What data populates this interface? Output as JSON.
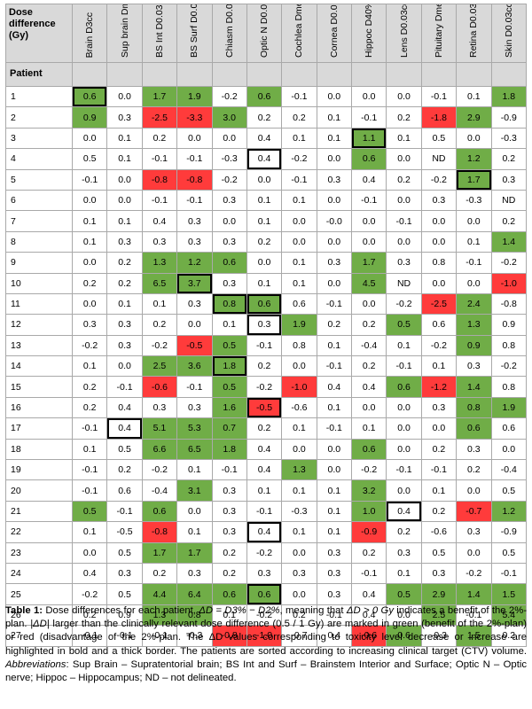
{
  "table": {
    "header_title": "Dose difference (Gy)",
    "patient_label": "Patient",
    "columns": [
      "Brain D3cc",
      "Sup brain Dmean",
      "BS Int D0.03cc",
      "BS Surf D0.03cc",
      "Chiasm D0.03cc",
      "Optic N D0.03cc",
      "Cochlea Dmean",
      "Cornea D0.03cc",
      "Hippoc D40%",
      "Lens D0.03cc",
      "Pituitary Dmean",
      "Retina D0.03cc",
      "Skin D0.03cc"
    ],
    "rows": [
      {
        "patient": "1",
        "values": [
          "0.6",
          "0.0",
          "1.7",
          "1.9",
          "-0.2",
          "0.6",
          "-0.1",
          "0.0",
          "0.0",
          "0.0",
          "-0.1",
          "0.1",
          "1.8"
        ],
        "flags": [
          "gb",
          "",
          "g",
          "g",
          "",
          "g",
          "",
          "",
          "",
          "",
          "",
          "",
          "g"
        ]
      },
      {
        "patient": "2",
        "values": [
          "0.9",
          "0.3",
          "-2.5",
          "-3.3",
          "3.0",
          "0.2",
          "0.2",
          "0.1",
          "-0.1",
          "0.2",
          "-1.8",
          "2.9",
          "-0.9"
        ],
        "flags": [
          "g",
          "",
          "r",
          "r",
          "g",
          "",
          "",
          "",
          "",
          "",
          "r",
          "g",
          ""
        ]
      },
      {
        "patient": "3",
        "values": [
          "0.0",
          "0.1",
          "0.2",
          "0.0",
          "0.0",
          "0.4",
          "0.1",
          "0.1",
          "1.1",
          "0.1",
          "0.5",
          "0.0",
          "-0.3"
        ],
        "flags": [
          "",
          "",
          "",
          "",
          "",
          "",
          "",
          "",
          "gb",
          "",
          "",
          "",
          ""
        ]
      },
      {
        "patient": "4",
        "values": [
          "0.5",
          "0.1",
          "-0.1",
          "-0.1",
          "-0.3",
          "0.4",
          "-0.2",
          "0.0",
          "0.6",
          "0.0",
          "ND",
          "1.2",
          "0.2"
        ],
        "flags": [
          "",
          "",
          "",
          "",
          "",
          "b",
          "",
          "",
          "g",
          "",
          "",
          "g",
          ""
        ]
      },
      {
        "patient": "5",
        "values": [
          "-0.1",
          "0.0",
          "-0.8",
          "-0.8",
          "-0.2",
          "0.0",
          "-0.1",
          "0.3",
          "0.4",
          "0.2",
          "-0.2",
          "1.7",
          "0.3"
        ],
        "flags": [
          "",
          "",
          "r",
          "r",
          "",
          "",
          "",
          "",
          "",
          "",
          "",
          "gb",
          ""
        ]
      },
      {
        "patient": "6",
        "values": [
          "0.0",
          "0.0",
          "-0.1",
          "-0.1",
          "0.3",
          "0.1",
          "0.1",
          "0.0",
          "-0.1",
          "0.0",
          "0.3",
          "-0.3",
          "ND"
        ],
        "flags": [
          "",
          "",
          "",
          "",
          "",
          "",
          "",
          "",
          "",
          "",
          "",
          "",
          ""
        ]
      },
      {
        "patient": "7",
        "values": [
          "0.1",
          "0.1",
          "0.4",
          "0.3",
          "0.0",
          "0.1",
          "0.0",
          "-0.0",
          "0.0",
          "-0.1",
          "0.0",
          "0.0",
          "0.2"
        ],
        "flags": [
          "",
          "",
          "",
          "",
          "",
          "",
          "",
          "",
          "",
          "",
          "",
          "",
          ""
        ]
      },
      {
        "patient": "8",
        "values": [
          "0.1",
          "0.3",
          "0.3",
          "0.3",
          "0.3",
          "0.2",
          "0.0",
          "0.0",
          "0.0",
          "0.0",
          "0.0",
          "0.1",
          "1.4"
        ],
        "flags": [
          "",
          "",
          "",
          "",
          "",
          "",
          "",
          "",
          "",
          "",
          "",
          "",
          "g"
        ]
      },
      {
        "patient": "9",
        "values": [
          "0.0",
          "0.2",
          "1.3",
          "1.2",
          "0.6",
          "0.0",
          "0.1",
          "0.3",
          "1.7",
          "0.3",
          "0.8",
          "-0.1",
          "-0.2"
        ],
        "flags": [
          "",
          "",
          "g",
          "g",
          "g",
          "",
          "",
          "",
          "g",
          "",
          "",
          "",
          ""
        ]
      },
      {
        "patient": "10",
        "values": [
          "0.2",
          "0.2",
          "6.5",
          "3.7",
          "0.3",
          "0.1",
          "0.1",
          "0.0",
          "4.5",
          "ND",
          "0.0",
          "0.0",
          "-1.0"
        ],
        "flags": [
          "",
          "",
          "g",
          "gb",
          "",
          "",
          "",
          "",
          "g",
          "",
          "",
          "",
          "r"
        ]
      },
      {
        "patient": "11",
        "values": [
          "0.0",
          "0.1",
          "0.1",
          "0.3",
          "0.8",
          "0.6",
          "0.6",
          "-0.1",
          "0.0",
          "-0.2",
          "-2.5",
          "2.4",
          "-0.8"
        ],
        "flags": [
          "",
          "",
          "",
          "",
          "gb",
          "gb",
          "",
          "",
          "",
          "",
          "r",
          "g",
          ""
        ]
      },
      {
        "patient": "12",
        "values": [
          "0.3",
          "0.3",
          "0.2",
          "0.0",
          "0.1",
          "0.3",
          "1.9",
          "0.2",
          "0.2",
          "0.5",
          "0.6",
          "1.3",
          "0.9"
        ],
        "flags": [
          "",
          "",
          "",
          "",
          "",
          "b",
          "g",
          "",
          "",
          "g",
          "",
          "g",
          ""
        ]
      },
      {
        "patient": "13",
        "values": [
          "-0.2",
          "0.3",
          "-0.2",
          "-0.5",
          "0.5",
          "-0.1",
          "0.8",
          "0.1",
          "-0.4",
          "0.1",
          "-0.2",
          "0.9",
          "0.8"
        ],
        "flags": [
          "",
          "",
          "",
          "r",
          "g",
          "",
          "",
          "",
          "",
          "",
          "",
          "g",
          ""
        ]
      },
      {
        "patient": "14",
        "values": [
          "0.1",
          "0.0",
          "2.5",
          "3.6",
          "1.8",
          "0.2",
          "0.0",
          "-0.1",
          "0.2",
          "-0.1",
          "0.1",
          "0.3",
          "-0.2"
        ],
        "flags": [
          "",
          "",
          "g",
          "g",
          "gb",
          "",
          "",
          "",
          "",
          "",
          "",
          "",
          ""
        ]
      },
      {
        "patient": "15",
        "values": [
          "0.2",
          "-0.1",
          "-0.6",
          "-0.1",
          "0.5",
          "-0.2",
          "-1.0",
          "0.4",
          "0.4",
          "0.6",
          "-1.2",
          "1.4",
          "0.8"
        ],
        "flags": [
          "",
          "",
          "r",
          "",
          "g",
          "",
          "r",
          "",
          "",
          "g",
          "r",
          "g",
          ""
        ]
      },
      {
        "patient": "16",
        "values": [
          "0.2",
          "0.4",
          "0.3",
          "0.3",
          "1.6",
          "-0.5",
          "-0.6",
          "0.1",
          "0.0",
          "0.0",
          "0.3",
          "0.8",
          "1.9"
        ],
        "flags": [
          "",
          "",
          "",
          "",
          "g",
          "rb",
          "",
          "",
          "",
          "",
          "",
          "g",
          "g"
        ]
      },
      {
        "patient": "17",
        "values": [
          "-0.1",
          "0.4",
          "5.1",
          "5.3",
          "0.7",
          "0.2",
          "0.1",
          "-0.1",
          "0.1",
          "0.0",
          "0.0",
          "0.6",
          "0.6"
        ],
        "flags": [
          "",
          "b",
          "g",
          "g",
          "g",
          "",
          "",
          "",
          "",
          "",
          "",
          "g",
          ""
        ]
      },
      {
        "patient": "18",
        "values": [
          "0.1",
          "0.5",
          "6.6",
          "6.5",
          "1.8",
          "0.4",
          "0.0",
          "0.0",
          "0.6",
          "0.0",
          "0.2",
          "0.3",
          "0.0"
        ],
        "flags": [
          "",
          "",
          "g",
          "g",
          "g",
          "",
          "",
          "",
          "g",
          "",
          "",
          "",
          ""
        ]
      },
      {
        "patient": "19",
        "values": [
          "-0.1",
          "0.2",
          "-0.2",
          "0.1",
          "-0.1",
          "0.4",
          "1.3",
          "0.0",
          "-0.2",
          "-0.1",
          "-0.1",
          "0.2",
          "-0.4"
        ],
        "flags": [
          "",
          "",
          "",
          "",
          "",
          "",
          "g",
          "",
          "",
          "",
          "",
          "",
          ""
        ]
      },
      {
        "patient": "20",
        "values": [
          "-0.1",
          "0.6",
          "-0.4",
          "3.1",
          "0.3",
          "0.1",
          "0.1",
          "0.1",
          "3.2",
          "0.0",
          "0.1",
          "0.0",
          "0.5"
        ],
        "flags": [
          "",
          "",
          "",
          "g",
          "",
          "",
          "",
          "",
          "g",
          "",
          "",
          "",
          ""
        ]
      },
      {
        "patient": "21",
        "values": [
          "0.5",
          "-0.1",
          "0.6",
          "0.0",
          "0.3",
          "-0.1",
          "-0.3",
          "0.1",
          "1.0",
          "0.4",
          "0.2",
          "-0.7",
          "1.2"
        ],
        "flags": [
          "g",
          "",
          "g",
          "",
          "",
          "",
          "",
          "",
          "g",
          "b",
          "",
          "r",
          "g"
        ]
      },
      {
        "patient": "22",
        "values": [
          "0.1",
          "-0.5",
          "-0.8",
          "0.1",
          "0.3",
          "0.4",
          "0.1",
          "0.1",
          "-0.9",
          "0.2",
          "-0.6",
          "0.3",
          "-0.9"
        ],
        "flags": [
          "",
          "",
          "r",
          "",
          "",
          "b",
          "",
          "",
          "r",
          "",
          "",
          "",
          ""
        ]
      },
      {
        "patient": "23",
        "values": [
          "0.0",
          "0.5",
          "1.7",
          "1.7",
          "0.2",
          "-0.2",
          "0.0",
          "0.3",
          "0.2",
          "0.3",
          "0.5",
          "0.0",
          "0.5"
        ],
        "flags": [
          "",
          "",
          "g",
          "g",
          "",
          "",
          "",
          "",
          "",
          "",
          "",
          "",
          ""
        ]
      },
      {
        "patient": "24",
        "values": [
          "0.4",
          "0.3",
          "0.2",
          "0.3",
          "0.2",
          "0.3",
          "0.3",
          "0.3",
          "-0.1",
          "0.1",
          "0.3",
          "-0.2",
          "-0.1"
        ],
        "flags": [
          "",
          "",
          "",
          "",
          "",
          "",
          "",
          "",
          "",
          "",
          "",
          "",
          ""
        ]
      },
      {
        "patient": "25",
        "values": [
          "-0.2",
          "0.5",
          "4.4",
          "6.4",
          "0.6",
          "0.6",
          "0.0",
          "0.3",
          "0.4",
          "0.5",
          "2.9",
          "1.4",
          "1.5"
        ],
        "flags": [
          "",
          "",
          "g",
          "g",
          "g",
          "gb",
          "",
          "",
          "",
          "g",
          "g",
          "g",
          "g"
        ]
      },
      {
        "patient": "26",
        "values": [
          "0.2",
          "0.9",
          "1.3",
          "0.8",
          "0.1",
          "-0.2",
          "0.2",
          "-0.1",
          "0.4",
          "0.0",
          "2.5",
          "-0.1",
          "5.4"
        ],
        "flags": [
          "",
          "",
          "g",
          "g",
          "",
          "",
          "",
          "",
          "",
          "",
          "g",
          "",
          "g"
        ]
      },
      {
        "patient": "27",
        "values": [
          "-0.1",
          "-0.1",
          "-0.1",
          "-0.3",
          "-0.8",
          "-1.0",
          "-0.7",
          "0.4",
          "-0.6",
          "0.6",
          "-0.3",
          "1.5",
          "0.2"
        ],
        "flags": [
          "",
          "",
          "",
          "",
          "r",
          "r",
          "",
          "",
          "r",
          "g",
          "",
          "g",
          ""
        ]
      }
    ]
  },
  "caption": {
    "label": "Table 1:",
    "s1": " Dose differences for each patient, ",
    "eq": "ΔD = D3% − D2%",
    "s2": ", meaning that ",
    "cond": "ΔD > 0 Gy",
    "s3": " indicates a benefit of the 2%-plan. ",
    "absd": "|ΔD|",
    "s4": " larger than the clinically relevant dose difference (0.5 / 1 Gy) are marked in green (benefit of the 2%-plan) or red (disadvantage of the 2%-plan. The ΔD values corresponding to toxicity level decrease or increase are highlighted in bold and a thick border. The patients are sorted according to increasing clinical target (CTV) volume. ",
    "abbr_label": "Abbreviations",
    "s5": ": Sup Brain – Supratentorial brain; BS Int and Surf – Brainstem Interior and Surface; Optic N – Optic nerve; Hippoc – Hippocampus; ND – not delineated."
  }
}
